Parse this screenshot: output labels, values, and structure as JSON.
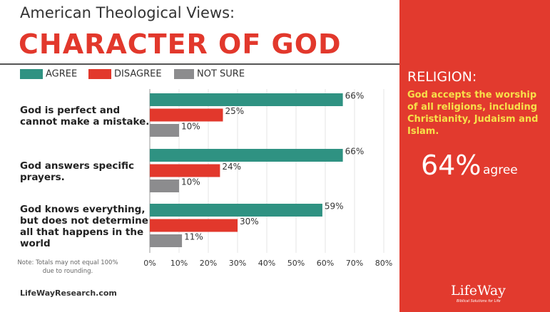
{
  "chart_data": {
    "type": "hbar",
    "subtitle": "American Theological Views:",
    "title": "CHARACTER OF GOD",
    "categories": [
      "God is perfect and cannot make a mistake.",
      "God answers specific prayers.",
      "God knows everything, but does not determine all that happens in the world"
    ],
    "series": [
      {
        "name": "AGREE",
        "color": "#2f9282",
        "values": [
          66,
          66,
          59
        ],
        "value_labels": [
          "66%",
          "66%",
          "59%"
        ]
      },
      {
        "name": "DISAGREE",
        "color": "#e2382c",
        "values": [
          25,
          24,
          30
        ],
        "value_labels": [
          "25%",
          "24%",
          "30%"
        ]
      },
      {
        "name": "NOT SURE",
        "color": "#8c8c8e",
        "values": [
          10,
          10,
          11
        ],
        "value_labels": [
          "10%",
          "10%",
          "11%"
        ]
      }
    ],
    "xlim": [
      0,
      80
    ],
    "xticks": [
      {
        "value": 0,
        "label": "0%"
      },
      {
        "value": 10,
        "label": "10%"
      },
      {
        "value": 20,
        "label": "20%"
      },
      {
        "value": 30,
        "label": "30%"
      },
      {
        "value": 40,
        "label": "40%"
      },
      {
        "value": 50,
        "label": "50%"
      },
      {
        "value": 60,
        "label": "60%"
      },
      {
        "value": 70,
        "label": "70%"
      },
      {
        "value": 80,
        "label": "80%"
      }
    ],
    "grid": true,
    "note": "Note: Totals may not equal 100% due to rounding."
  },
  "sidebar": {
    "heading": "RELIGION:",
    "text": "God accepts the worship of all religions, including Christianity, Judaism and Islam.",
    "stat": "64%",
    "stat_suffix": "agree"
  },
  "footer": "LifeWayResearch.com",
  "logo": {
    "name": "LifeWay",
    "tagline": "Biblical Solutions for Life"
  }
}
